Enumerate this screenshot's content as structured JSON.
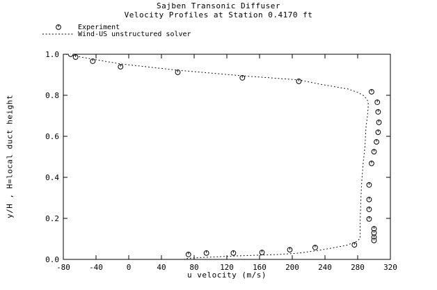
{
  "window": {
    "background_color": "#ffffff",
    "foreground_color": "#000000"
  },
  "chart_data": {
    "type": "scatter",
    "title": "Sajben Transonic Diffuser",
    "subtitle": "Velocity Profiles at Station 0.4170 ft",
    "xlabel": "u velocity (m/s)",
    "ylabel": "y/H , H=local duct height",
    "xlim": [
      -80,
      320
    ],
    "ylim": [
      0.0,
      1.0
    ],
    "x_ticks": [
      -80,
      -40,
      0,
      40,
      80,
      120,
      160,
      200,
      240,
      280,
      320
    ],
    "x_tick_labels": [
      "-80",
      "-40",
      "0",
      "40",
      "80",
      "120",
      "160",
      "200",
      "240",
      "280",
      "320"
    ],
    "y_ticks": [
      0.0,
      0.2,
      0.4,
      0.6,
      0.8,
      1.0
    ],
    "y_tick_labels": [
      "0.0",
      "0.2",
      "0.4",
      "0.6",
      "0.8",
      "1.0"
    ],
    "grid": false,
    "legend_position": "above-plot-top-left",
    "series": [
      {
        "name": "Experiment",
        "type": "scatter",
        "marker": "circle-with-top-tick",
        "color": "#000000",
        "points": [
          [
            -71,
            1.0
          ],
          [
            -65,
            0.986
          ],
          [
            -44,
            0.966
          ],
          [
            -10,
            0.939
          ],
          [
            60,
            0.912
          ],
          [
            139,
            0.885
          ],
          [
            208,
            0.868
          ],
          [
            297,
            0.817
          ],
          [
            304,
            0.766
          ],
          [
            305,
            0.719
          ],
          [
            306,
            0.668
          ],
          [
            305,
            0.62
          ],
          [
            303,
            0.573
          ],
          [
            300,
            0.525
          ],
          [
            297,
            0.468
          ],
          [
            294,
            0.363
          ],
          [
            294,
            0.292
          ],
          [
            294,
            0.244
          ],
          [
            294,
            0.197
          ],
          [
            300,
            0.149
          ],
          [
            300,
            0.129
          ],
          [
            300,
            0.108
          ],
          [
            300,
            0.092
          ],
          [
            276,
            0.071
          ],
          [
            228,
            0.058
          ],
          [
            197,
            0.047
          ],
          [
            163,
            0.034
          ],
          [
            128,
            0.031
          ],
          [
            95,
            0.031
          ],
          [
            73,
            0.024
          ]
        ]
      },
      {
        "name": "Wind-US unstructured solver",
        "type": "line",
        "line_style": "dotted",
        "color": "#000000",
        "points": [
          [
            -77,
            1.0
          ],
          [
            -44,
            0.976
          ],
          [
            -10,
            0.953
          ],
          [
            60,
            0.922
          ],
          [
            139,
            0.895
          ],
          [
            208,
            0.875
          ],
          [
            234,
            0.854
          ],
          [
            268,
            0.831
          ],
          [
            280,
            0.814
          ],
          [
            288,
            0.797
          ],
          [
            292,
            0.775
          ],
          [
            293,
            0.756
          ],
          [
            292,
            0.7
          ],
          [
            290,
            0.64
          ],
          [
            289,
            0.553
          ],
          [
            287,
            0.48
          ],
          [
            285,
            0.383
          ],
          [
            284,
            0.3
          ],
          [
            283,
            0.18
          ],
          [
            283,
            0.102
          ],
          [
            279,
            0.088
          ],
          [
            266,
            0.068
          ],
          [
            237,
            0.047
          ],
          [
            209,
            0.031
          ],
          [
            183,
            0.024
          ],
          [
            132,
            0.017
          ],
          [
            78,
            0.007
          ],
          [
            68,
            0.003
          ]
        ]
      }
    ]
  }
}
